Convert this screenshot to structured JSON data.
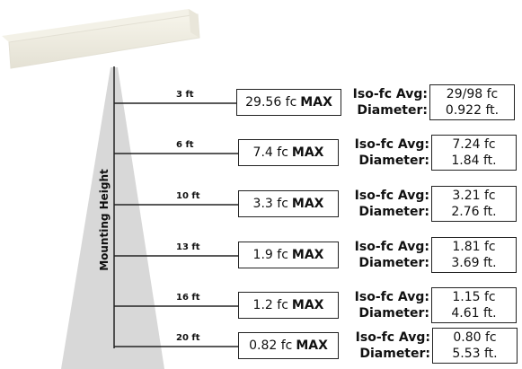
{
  "diagram": {
    "axis_label": "Mounting Height",
    "max_suffix": "MAX",
    "labels": {
      "avg": "Iso-fc Avg:",
      "diameter": "Diameter:"
    },
    "rows": [
      {
        "height": "3 ft",
        "max": "29.56 fc",
        "avg": "29/98 fc",
        "diameter": "0.922 ft."
      },
      {
        "height": "6 ft",
        "max": "7.4 fc",
        "avg": "7.24 fc",
        "diameter": "1.84 ft."
      },
      {
        "height": "10 ft",
        "max": "3.3 fc",
        "avg": "3.21 fc",
        "diameter": "2.76 ft."
      },
      {
        "height": "13 ft",
        "max": "1.9 fc",
        "avg": "1.81 fc",
        "diameter": "3.69 ft."
      },
      {
        "height": "16 ft",
        "max": "1.2 fc",
        "avg": "1.15 fc",
        "diameter": "4.61 ft."
      },
      {
        "height": "20 ft",
        "max": "0.82 fc",
        "avg": "0.80 fc",
        "diameter": "5.53 ft."
      }
    ]
  }
}
